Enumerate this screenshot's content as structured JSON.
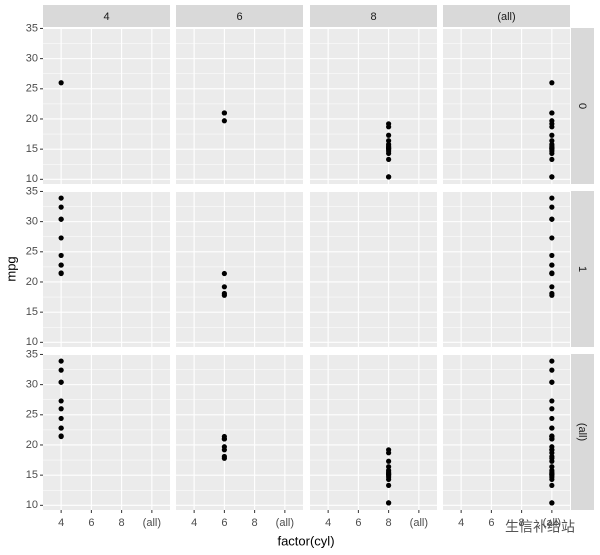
{
  "chart_data": {
    "type": "scatter",
    "x_label": "factor(cyl)",
    "y_label": "mpg",
    "categories": [
      "4",
      "6",
      "8",
      "(all)"
    ],
    "facet_cols": [
      "4",
      "6",
      "8",
      "(all)"
    ],
    "facet_rows": [
      "0",
      "1",
      "(all)"
    ],
    "ylim": [
      9.225,
      35.075
    ],
    "yticks": [
      10,
      15,
      20,
      25,
      30,
      35
    ],
    "grid": true,
    "color": "#000000",
    "groups": [
      {
        "row": 0,
        "col": 0,
        "values": [
          26.0
        ]
      },
      {
        "row": 0,
        "col": 1,
        "values": [
          21.0,
          21.0,
          19.7
        ]
      },
      {
        "row": 0,
        "col": 2,
        "values": [
          18.7,
          14.3,
          16.4,
          17.3,
          15.2,
          10.4,
          10.4,
          14.7,
          15.5,
          15.2,
          13.3,
          19.2,
          15.8,
          15.0
        ]
      },
      {
        "row": 1,
        "col": 0,
        "values": [
          22.8,
          24.4,
          22.8,
          32.4,
          30.4,
          33.9,
          21.5,
          27.3,
          30.4,
          21.4
        ]
      },
      {
        "row": 1,
        "col": 1,
        "values": [
          21.4,
          18.1,
          19.2,
          17.8
        ]
      }
    ],
    "watermark": "生信补给站"
  }
}
